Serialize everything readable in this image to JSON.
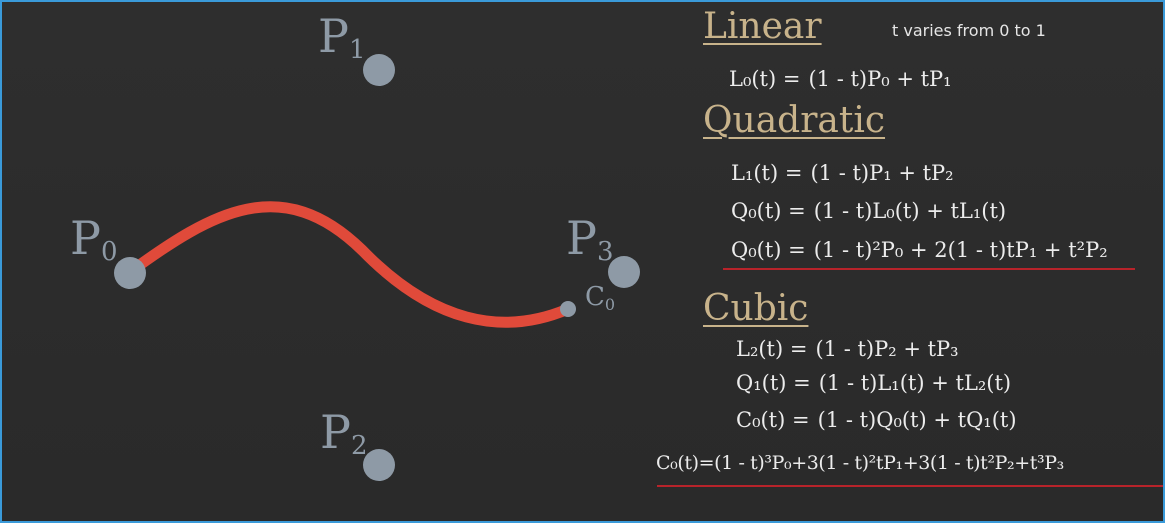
{
  "points": [
    {
      "id": "p0",
      "letter": "P",
      "index": "0"
    },
    {
      "id": "p1",
      "letter": "P",
      "index": "1"
    },
    {
      "id": "p2",
      "letter": "P",
      "index": "2"
    },
    {
      "id": "p3",
      "letter": "P",
      "index": "3"
    }
  ],
  "curve_point": {
    "letter": "C",
    "index": "0"
  },
  "curve_color": "#e04a3a",
  "point_color": "#8e9aa6",
  "accent_color": "#c8b38b",
  "underline_color": "#b8232a",
  "sections": {
    "linear": {
      "title": "Linear",
      "note": "t varies from 0 to 1",
      "equations": [
        {
          "lhs": "L₀(t) =",
          "rhs": "(1 - t)P₀ + tP₁"
        }
      ]
    },
    "quadratic": {
      "title": "Quadratic",
      "equations": [
        {
          "lhs": "L₁(t) =",
          "rhs": "(1 - t)P₁ + tP₂"
        },
        {
          "lhs": "Q₀(t) =",
          "rhs": "(1 - t)L₀(t) + tL₁(t)"
        },
        {
          "lhs": "Q₀(t) =",
          "rhs": "(1 - t)²P₀ + 2(1 - t)tP₁ + t²P₂"
        }
      ]
    },
    "cubic": {
      "title": "Cubic",
      "equations": [
        {
          "lhs": "L₂(t) =",
          "rhs": "(1 - t)P₂ + tP₃"
        },
        {
          "lhs": "Q₁(t) =",
          "rhs": "(1 - t)L₁(t) + tL₂(t)"
        },
        {
          "lhs": "C₀(t) =",
          "rhs": "(1 - t)Q₀(t) + tQ₁(t)"
        },
        {
          "lhs": "C₀(t)=",
          "rhs": "(1 - t)³P₀+3(1 - t)²tP₁+3(1 - t)t²P₂+t³P₃"
        }
      ]
    }
  }
}
